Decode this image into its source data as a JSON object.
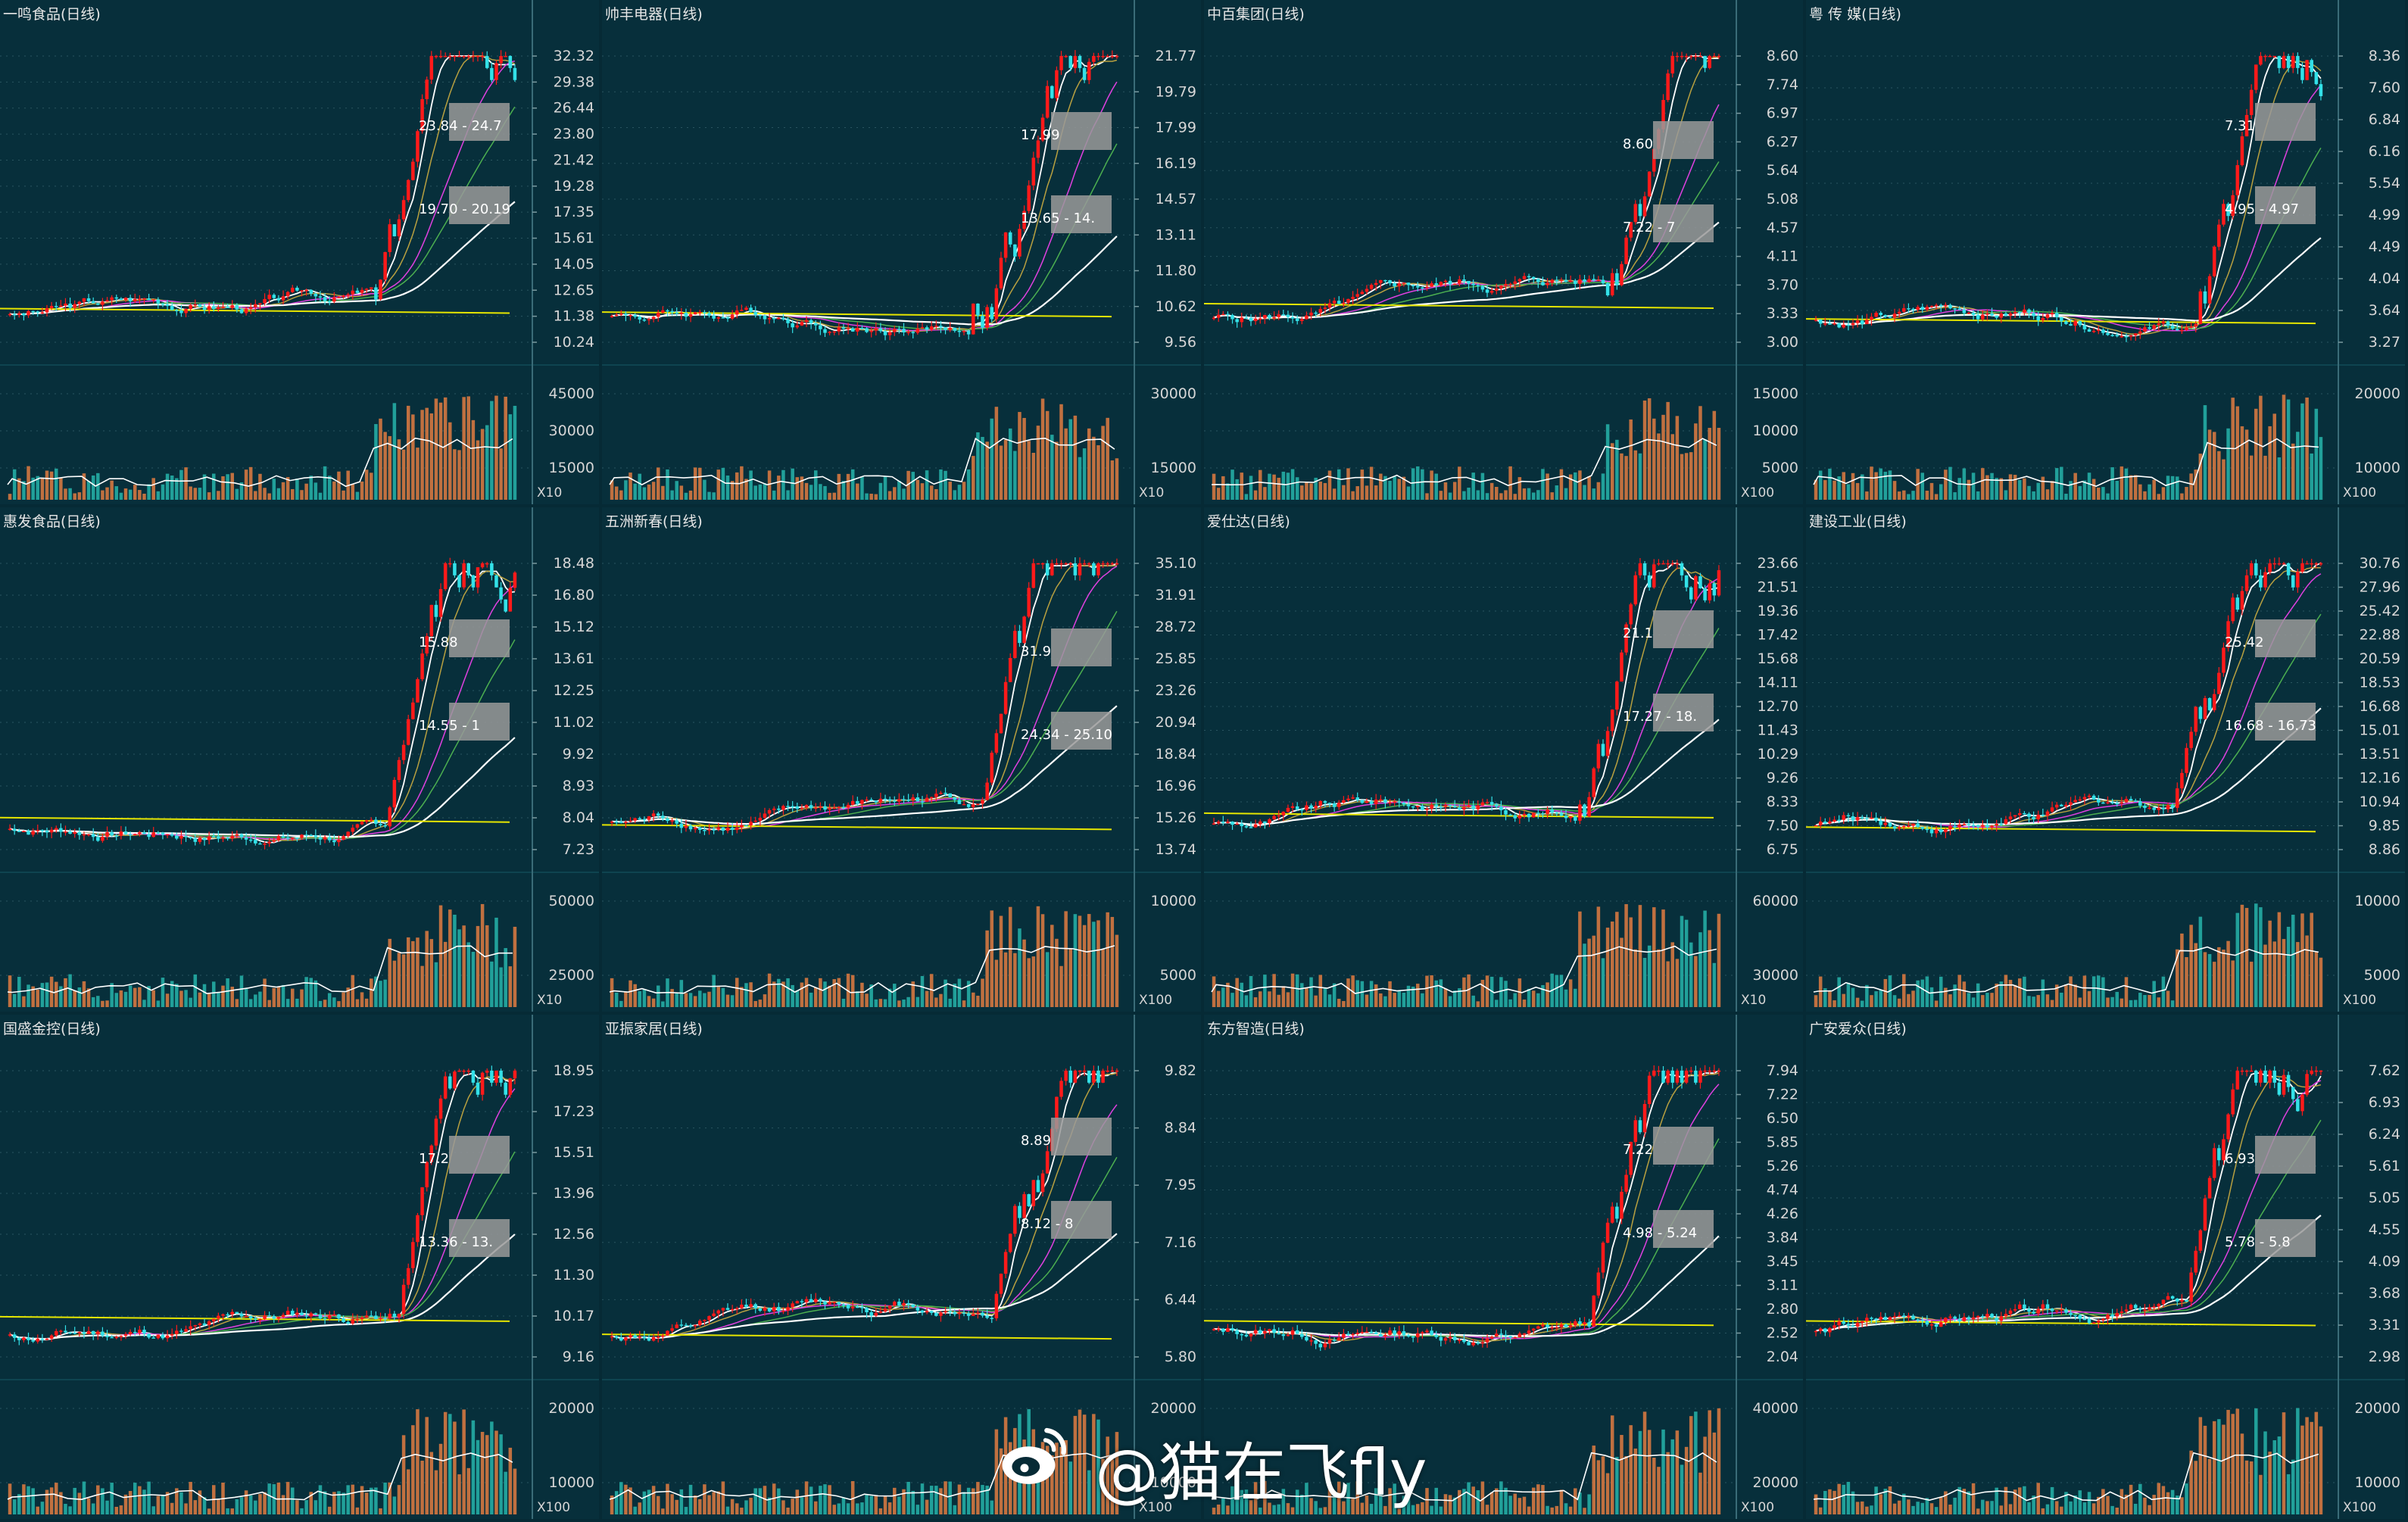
{
  "colors": {
    "background": "#072f3b",
    "up": "#ff1a1a",
    "down": "#33e1e8",
    "volume_up": "#c07040",
    "volume_down": "#21a09a",
    "axis_text": "#d6d6d6",
    "ma_white": "#ffffff",
    "ma_yellow": "#e6e600",
    "ma_magenta": "#e040e0",
    "ma_green": "#4caf50",
    "ma_olive": "#b8a040",
    "grid": "#2a5560"
  },
  "chart_data": [
    {
      "type": "candlestick",
      "title": "一鸣食品(日线)",
      "yticks": [
        "32.32",
        "29.38",
        "26.44",
        "23.80",
        "21.42",
        "19.28",
        "17.35",
        "15.61",
        "14.05",
        "12.65",
        "11.38",
        "10.24"
      ],
      "volume_ticks": [
        "45000",
        "30000",
        "15000"
      ],
      "volume_unit": "X10",
      "price_labels": [
        "23.84 - 24.7",
        "19.70 - 20.19"
      ]
    },
    {
      "type": "candlestick",
      "title": "帅丰电器(日线)",
      "yticks": [
        "21.77",
        "19.79",
        "17.99",
        "16.19",
        "14.57",
        "13.11",
        "11.80",
        "10.62",
        "9.56"
      ],
      "volume_ticks": [
        "30000",
        "15000"
      ],
      "volume_unit": "X10",
      "price_labels": [
        "17.99",
        "13.65 - 14."
      ]
    },
    {
      "type": "candlestick",
      "title": "中百集团(日线)",
      "yticks": [
        "8.60",
        "7.74",
        "6.97",
        "6.27",
        "5.64",
        "5.08",
        "4.57",
        "4.11",
        "3.70",
        "3.33",
        "3.00"
      ],
      "volume_ticks": [
        "15000",
        "10000",
        "5000"
      ],
      "volume_unit": "X100",
      "price_labels": [
        "8.60",
        "7.22 - 7"
      ]
    },
    {
      "type": "candlestick",
      "title": "粤 传 媒(日线)",
      "yticks": [
        "8.36",
        "7.60",
        "6.84",
        "6.16",
        "5.54",
        "4.99",
        "4.49",
        "4.04",
        "3.64",
        "3.27"
      ],
      "volume_ticks": [
        "20000",
        "10000"
      ],
      "volume_unit": "X100",
      "price_labels": [
        "7.31",
        "4.95 - 4.97"
      ]
    },
    {
      "type": "candlestick",
      "title": "惠发食品(日线)",
      "yticks": [
        "18.48",
        "16.80",
        "15.12",
        "13.61",
        "12.25",
        "11.02",
        "9.92",
        "8.93",
        "8.04",
        "7.23"
      ],
      "volume_ticks": [
        "50000",
        "25000"
      ],
      "volume_unit": "X10",
      "price_labels": [
        "15.88",
        "14.55 - 1"
      ]
    },
    {
      "type": "candlestick",
      "title": "五洲新春(日线)",
      "yticks": [
        "35.10",
        "31.91",
        "28.72",
        "25.85",
        "23.26",
        "20.94",
        "18.84",
        "16.96",
        "15.26",
        "13.74"
      ],
      "volume_ticks": [
        "10000",
        "5000"
      ],
      "volume_unit": "X100",
      "price_labels": [
        "31.9",
        "24.34 - 25.10"
      ]
    },
    {
      "type": "candlestick",
      "title": "爱仕达(日线)",
      "yticks": [
        "23.66",
        "21.51",
        "19.36",
        "17.42",
        "15.68",
        "14.11",
        "12.70",
        "11.43",
        "10.29",
        "9.26",
        "8.33",
        "7.50",
        "6.75"
      ],
      "volume_ticks": [
        "60000",
        "30000"
      ],
      "volume_unit": "X10",
      "price_labels": [
        "21.1",
        "17.27 - 18."
      ]
    },
    {
      "type": "candlestick",
      "title": "建设工业(日线)",
      "yticks": [
        "30.76",
        "27.96",
        "25.42",
        "22.88",
        "20.59",
        "18.53",
        "16.68",
        "15.01",
        "13.51",
        "12.16",
        "10.94",
        "9.85",
        "8.86"
      ],
      "volume_ticks": [
        "10000",
        "5000"
      ],
      "volume_unit": "X100",
      "price_labels": [
        "25.42",
        "16.68 - 16.73"
      ]
    },
    {
      "type": "candlestick",
      "title": "国盛金控(日线)",
      "yticks": [
        "18.95",
        "17.23",
        "15.51",
        "13.96",
        "12.56",
        "11.30",
        "10.17",
        "9.16"
      ],
      "volume_ticks": [
        "20000",
        "10000"
      ],
      "volume_unit": "X100",
      "price_labels": [
        "17.2",
        "13.36 - 13."
      ]
    },
    {
      "type": "candlestick",
      "title": "亚振家居(日线)",
      "yticks": [
        "9.82",
        "8.84",
        "7.95",
        "7.16",
        "6.44",
        "5.80"
      ],
      "volume_ticks": [
        "20000",
        "10000"
      ],
      "volume_unit": "X100",
      "price_labels": [
        "8.89",
        "8.12 - 8"
      ]
    },
    {
      "type": "candlestick",
      "title": "东方智造(日线)",
      "yticks": [
        "7.94",
        "7.22",
        "6.50",
        "5.85",
        "5.26",
        "4.74",
        "4.26",
        "3.84",
        "3.45",
        "3.11",
        "2.80",
        "2.52",
        "2.04"
      ],
      "volume_ticks": [
        "40000",
        "20000"
      ],
      "volume_unit": "X100",
      "price_labels": [
        "7.22",
        "4.98 - 5.24"
      ]
    },
    {
      "type": "candlestick",
      "title": "广安爱众(日线)",
      "yticks": [
        "7.62",
        "6.93",
        "6.24",
        "5.61",
        "5.05",
        "4.55",
        "4.09",
        "3.68",
        "3.31",
        "2.98"
      ],
      "volume_ticks": [
        "20000",
        "10000"
      ],
      "volume_unit": "X100",
      "price_labels": [
        "6.93",
        "5.78 - 5.8"
      ]
    }
  ],
  "watermark": {
    "text": "@猫在飞fly",
    "icon": "weibo-logo"
  }
}
